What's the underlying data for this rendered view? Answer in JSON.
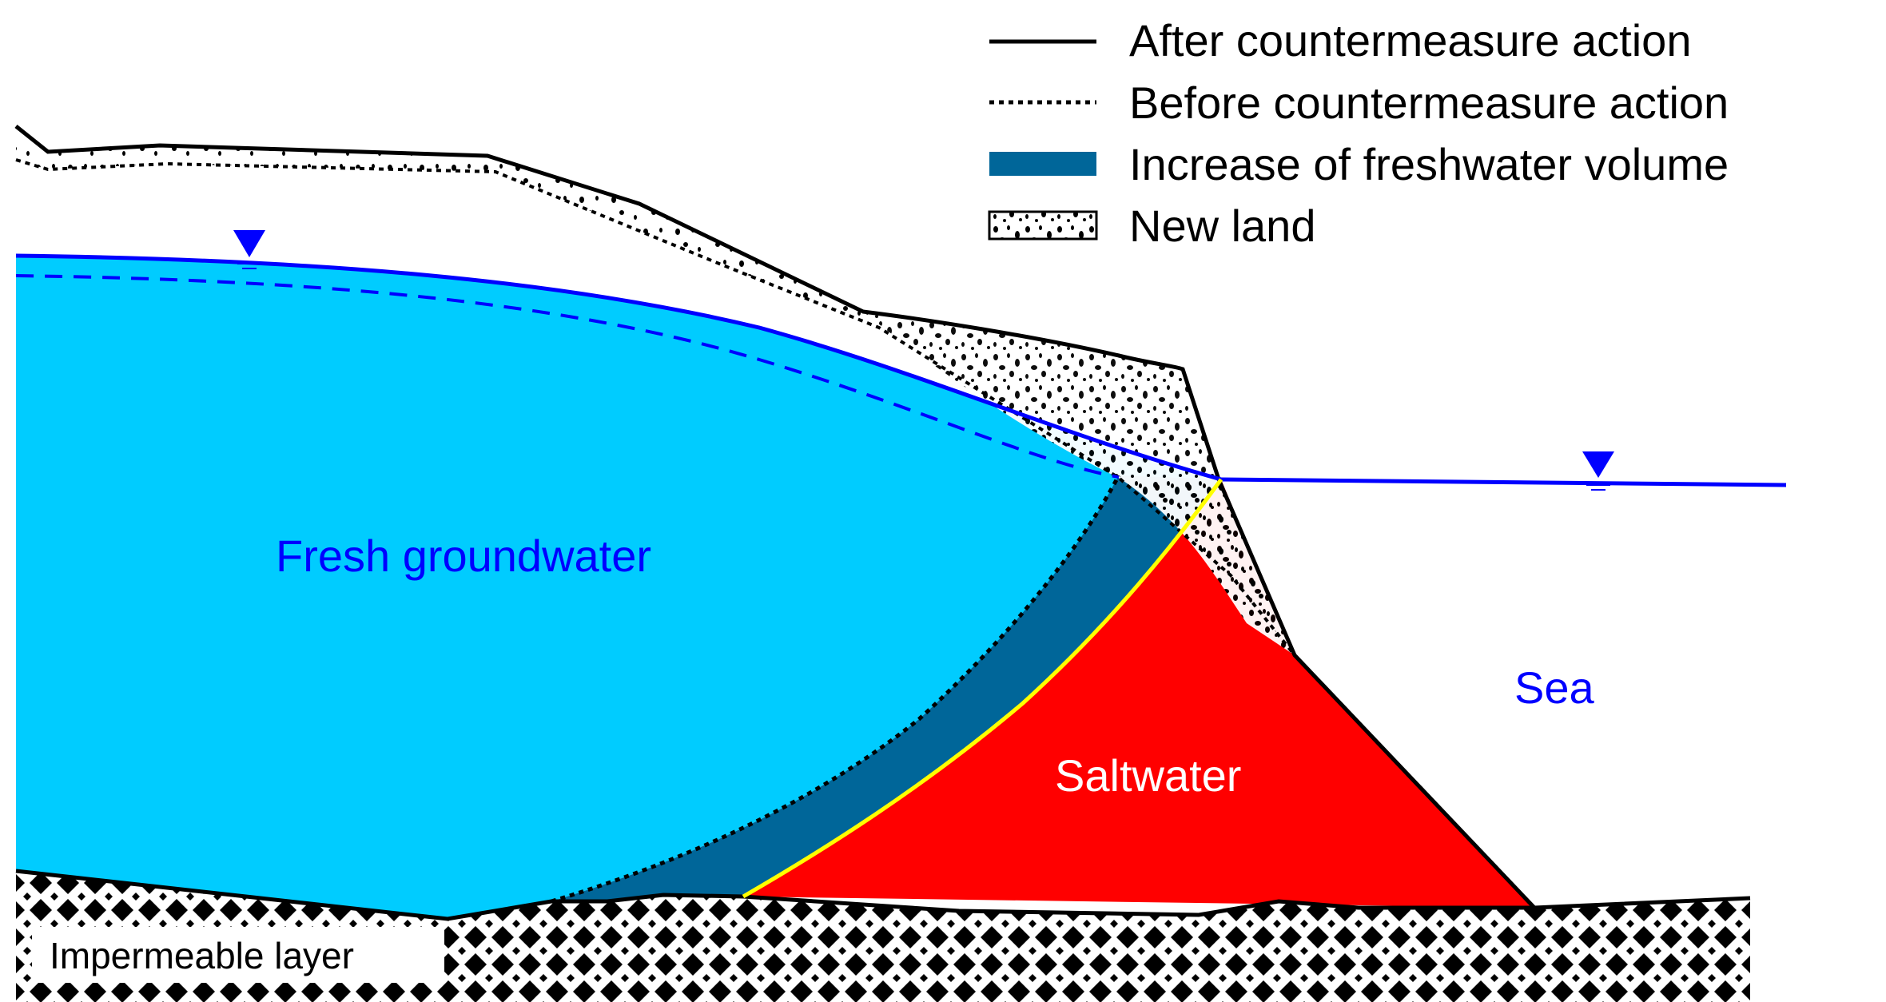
{
  "legend": {
    "after": "After countermeasure action",
    "before": "Before countermeasure action",
    "increase": "Increase of freshwater volume",
    "newland": "New land"
  },
  "labels": {
    "fresh": "Fresh groundwater",
    "sea": "Sea",
    "salt": "Saltwater",
    "impermeable": "Impermeable layer"
  },
  "colors": {
    "fresh_groundwater": "#00CCFF",
    "freshwater_increase": "#006699",
    "saltwater": "#FF0000",
    "interface_new": "#FFFF00",
    "water_table": "#0000FF",
    "outline": "#000000"
  }
}
